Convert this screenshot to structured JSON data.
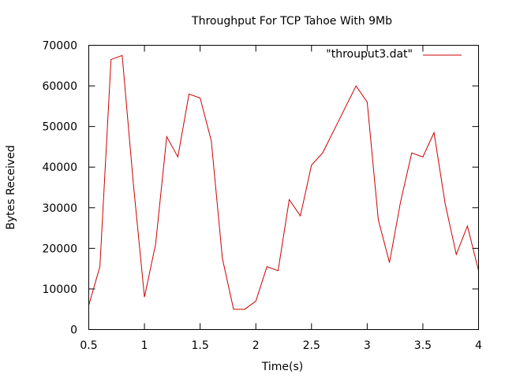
{
  "chart_data": {
    "type": "line",
    "title": "Throughput For TCP Tahoe With 9Mb",
    "xlabel": "Time(s)",
    "ylabel": "Bytes Received",
    "xlim": [
      0.5,
      4
    ],
    "ylim": [
      0,
      70000
    ],
    "xticks": [
      0.5,
      1,
      1.5,
      2,
      2.5,
      3,
      3.5,
      4
    ],
    "xtick_labels": [
      "0.5",
      "1",
      "1.5",
      "2",
      "2.5",
      "3",
      "3.5",
      "4"
    ],
    "yticks": [
      0,
      10000,
      20000,
      30000,
      40000,
      50000,
      60000,
      70000
    ],
    "ytick_labels": [
      "0",
      "10000",
      "20000",
      "30000",
      "40000",
      "50000",
      "60000",
      "70000"
    ],
    "grid": false,
    "legend_position": "top-right",
    "series": [
      {
        "name": "\"throuput3.dat\"",
        "color": "#cc0000",
        "x": [
          0.5,
          0.6,
          0.7,
          0.8,
          0.9,
          1.0,
          1.1,
          1.2,
          1.3,
          1.4,
          1.5,
          1.6,
          1.7,
          1.8,
          1.9,
          2.0,
          2.1,
          2.2,
          2.3,
          2.4,
          2.5,
          2.6,
          2.7,
          2.8,
          2.9,
          3.0,
          3.1,
          3.2,
          3.3,
          3.4,
          3.5,
          3.6,
          3.7,
          3.8,
          3.9,
          4.0
        ],
        "y": [
          6000,
          15500,
          66500,
          67500,
          36000,
          8000,
          21000,
          47500,
          42500,
          58000,
          57000,
          46500,
          17500,
          5000,
          5000,
          7000,
          15500,
          14500,
          32000,
          28000,
          40500,
          43500,
          49000,
          54500,
          60000,
          56000,
          27000,
          16500,
          31500,
          43500,
          42500,
          48500,
          31000,
          18500,
          25500,
          14500
        ]
      }
    ]
  }
}
